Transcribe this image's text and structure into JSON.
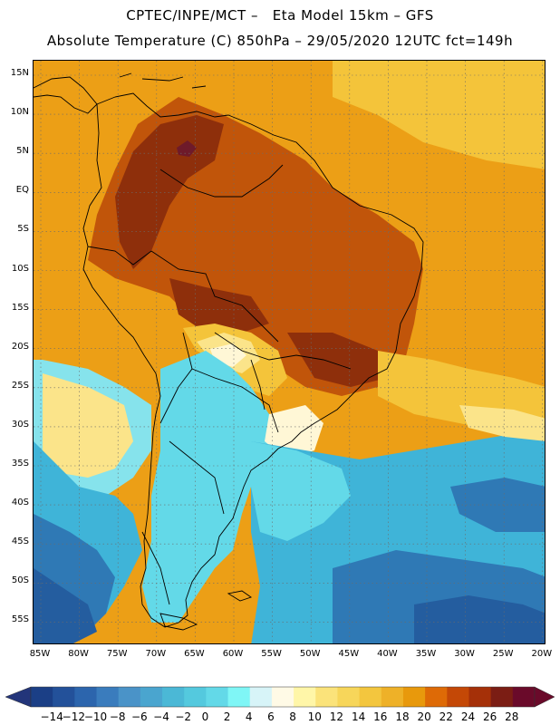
{
  "header": {
    "line1": "CPTEC/INPE/MCT –   Eta Model 15km – GFS",
    "line2": "Absolute Temperature (C) 850hPa – 29/05/2020 12UTC fct=149h"
  },
  "axes": {
    "lat_labels": [
      "15N",
      "10N",
      "5N",
      "EQ",
      "5S",
      "10S",
      "15S",
      "20S",
      "25S",
      "30S",
      "35S",
      "40S",
      "45S",
      "50S",
      "55S"
    ],
    "lon_labels": [
      "85W",
      "80W",
      "75W",
      "70W",
      "65W",
      "60W",
      "55W",
      "50W",
      "45W",
      "40W",
      "35W",
      "30W",
      "25W",
      "20W"
    ]
  },
  "colorbar": {
    "labels": [
      "-14",
      "-12",
      "-10",
      "-8",
      "-6",
      "-4",
      "-2",
      "0",
      "2",
      "4",
      "6",
      "8",
      "10",
      "12",
      "14",
      "16",
      "18",
      "20",
      "22",
      "24",
      "26",
      "28"
    ],
    "colors": [
      "#1b3f86",
      "#23519a",
      "#2c65ad",
      "#3a7cbd",
      "#4a93c8",
      "#4aa5cf",
      "#4bb8d6",
      "#54c9de",
      "#63d9e8",
      "#7ff6f6",
      "#d7f4f8",
      "#fffae6",
      "#fff6a8",
      "#fbe37a",
      "#f7d65a",
      "#f3c63e",
      "#eeb128",
      "#e8990c",
      "#de6a06",
      "#c44806",
      "#a53008",
      "#7b1d14",
      "#6a0a2a"
    ],
    "left_end_color": "#23357a",
    "right_end_color": "#6a0a2a"
  },
  "map": {
    "field_colors": {
      "tropical_warm": "#ec9f16",
      "interior_hot": "#c1550a",
      "core_hot": "#8e2f0b",
      "extreme": "#6e1a2a",
      "mild": "#f4c43a",
      "light_yellow": "#fbe48a",
      "cream": "#fff7d6",
      "cold_cyan": "#63d9e8",
      "light_cyan": "#86e3ec",
      "ocean_cool": "#3fb4d8",
      "deep_cold": "#2f79b5",
      "very_deep": "#245d9f"
    },
    "coastline_color": "#000000"
  }
}
